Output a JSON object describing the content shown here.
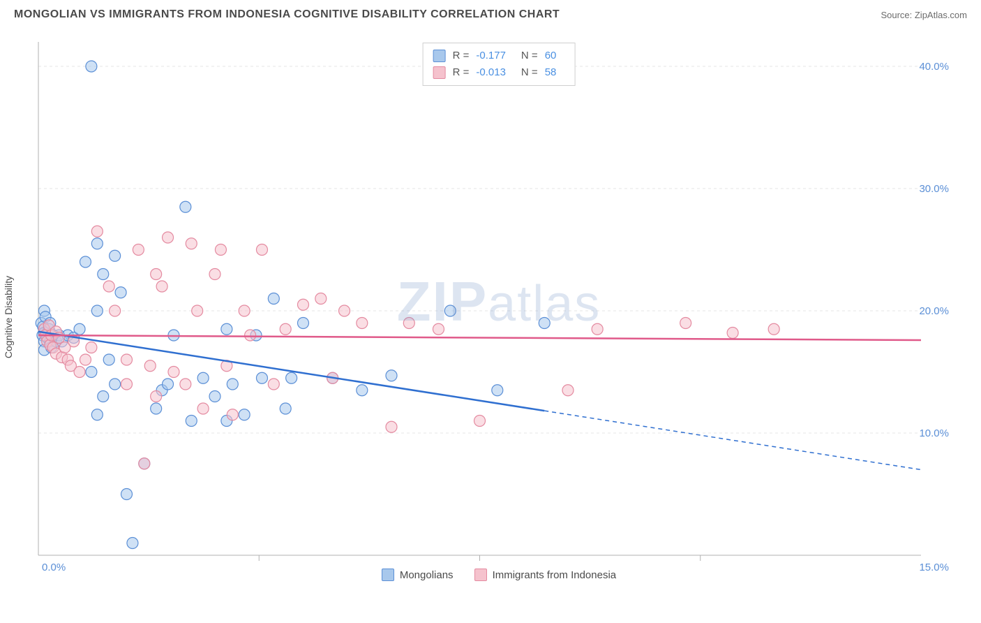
{
  "header": {
    "title": "MONGOLIAN VS IMMIGRANTS FROM INDONESIA COGNITIVE DISABILITY CORRELATION CHART",
    "source_prefix": "Source: ",
    "source_name": "ZipAtlas.com"
  },
  "watermark": {
    "bold": "ZIP",
    "rest": "atlas"
  },
  "y_axis": {
    "label": "Cognitive Disability"
  },
  "chart": {
    "type": "scatter",
    "xlim": [
      0,
      15
    ],
    "ylim": [
      0,
      42
    ],
    "x_ticks": [
      0,
      15
    ],
    "x_tick_labels": [
      "0.0%",
      "15.0%"
    ],
    "y_ticks": [
      10,
      20,
      30,
      40
    ],
    "y_tick_labels": [
      "10.0%",
      "20.0%",
      "30.0%",
      "40.0%"
    ],
    "x_tick_positions_minor": [
      3.75,
      7.5,
      11.25
    ],
    "grid_color": "#e5e5e5",
    "axis_color": "#b0b0b0",
    "tick_label_color": "#5b8fd6",
    "tick_label_fontsize": 15,
    "background_color": "#ffffff",
    "point_radius": 8,
    "point_opacity": 0.55,
    "series": [
      {
        "name": "Mongolians",
        "fill": "#a8c8ec",
        "stroke": "#5b8fd6",
        "R": "-0.177",
        "N": "60",
        "trend": {
          "y_at_x0": 18.3,
          "y_at_xmax": 7.0,
          "solid_until_x": 8.6,
          "color": "#2f6fd0",
          "width": 2.5
        },
        "points": [
          [
            0.05,
            19.0
          ],
          [
            0.07,
            18.0
          ],
          [
            0.08,
            18.7
          ],
          [
            0.1,
            20.0
          ],
          [
            0.1,
            18.2
          ],
          [
            0.12,
            19.5
          ],
          [
            0.12,
            18.0
          ],
          [
            0.1,
            17.5
          ],
          [
            0.1,
            16.8
          ],
          [
            0.15,
            17.8
          ],
          [
            0.18,
            18.5
          ],
          [
            0.2,
            19.0
          ],
          [
            0.2,
            17.5
          ],
          [
            0.22,
            17.0
          ],
          [
            0.25,
            18.0
          ],
          [
            0.3,
            17.5
          ],
          [
            0.35,
            18.0
          ],
          [
            0.4,
            17.5
          ],
          [
            0.5,
            18.0
          ],
          [
            0.6,
            17.8
          ],
          [
            0.7,
            18.5
          ],
          [
            0.9,
            40.0
          ],
          [
            0.8,
            24.0
          ],
          [
            1.0,
            25.5
          ],
          [
            1.1,
            23.0
          ],
          [
            1.3,
            24.5
          ],
          [
            1.4,
            21.5
          ],
          [
            1.0,
            20.0
          ],
          [
            0.9,
            15.0
          ],
          [
            1.0,
            11.5
          ],
          [
            1.1,
            13.0
          ],
          [
            1.2,
            16.0
          ],
          [
            1.3,
            14.0
          ],
          [
            1.5,
            5.0
          ],
          [
            1.6,
            1.0
          ],
          [
            1.8,
            7.5
          ],
          [
            2.0,
            12.0
          ],
          [
            2.1,
            13.5
          ],
          [
            2.2,
            14.0
          ],
          [
            2.3,
            18.0
          ],
          [
            2.5,
            28.5
          ],
          [
            2.6,
            11.0
          ],
          [
            2.8,
            14.5
          ],
          [
            3.0,
            13.0
          ],
          [
            3.2,
            18.5
          ],
          [
            3.2,
            11.0
          ],
          [
            3.3,
            14.0
          ],
          [
            3.5,
            11.5
          ],
          [
            3.7,
            18.0
          ],
          [
            3.8,
            14.5
          ],
          [
            4.0,
            21.0
          ],
          [
            4.2,
            12.0
          ],
          [
            4.3,
            14.5
          ],
          [
            4.5,
            19.0
          ],
          [
            5.0,
            14.5
          ],
          [
            5.5,
            13.5
          ],
          [
            6.0,
            14.7
          ],
          [
            7.0,
            20.0
          ],
          [
            7.8,
            13.5
          ],
          [
            8.6,
            19.0
          ]
        ]
      },
      {
        "name": "Immigrants from Indonesia",
        "fill": "#f5c2cd",
        "stroke": "#e48aa0",
        "R": "-0.013",
        "N": "58",
        "trend": {
          "y_at_x0": 18.0,
          "y_at_xmax": 17.6,
          "solid_until_x": 15,
          "color": "#e05a8a",
          "width": 2.5
        },
        "points": [
          [
            0.1,
            18.5
          ],
          [
            0.12,
            18.0
          ],
          [
            0.15,
            17.5
          ],
          [
            0.18,
            18.8
          ],
          [
            0.2,
            17.2
          ],
          [
            0.22,
            18.0
          ],
          [
            0.25,
            17.0
          ],
          [
            0.3,
            18.3
          ],
          [
            0.3,
            16.5
          ],
          [
            0.35,
            17.8
          ],
          [
            0.4,
            16.2
          ],
          [
            0.45,
            17.0
          ],
          [
            0.5,
            16.0
          ],
          [
            0.55,
            15.5
          ],
          [
            0.6,
            17.5
          ],
          [
            0.7,
            15.0
          ],
          [
            0.8,
            16.0
          ],
          [
            0.9,
            17.0
          ],
          [
            1.0,
            26.5
          ],
          [
            1.2,
            22.0
          ],
          [
            1.3,
            20.0
          ],
          [
            1.5,
            16.0
          ],
          [
            1.5,
            14.0
          ],
          [
            1.7,
            25.0
          ],
          [
            1.8,
            7.5
          ],
          [
            1.9,
            15.5
          ],
          [
            2.0,
            23.0
          ],
          [
            2.0,
            13.0
          ],
          [
            2.1,
            22.0
          ],
          [
            2.2,
            26.0
          ],
          [
            2.3,
            15.0
          ],
          [
            2.5,
            14.0
          ],
          [
            2.6,
            25.5
          ],
          [
            2.7,
            20.0
          ],
          [
            2.8,
            12.0
          ],
          [
            3.0,
            23.0
          ],
          [
            3.1,
            25.0
          ],
          [
            3.2,
            15.5
          ],
          [
            3.3,
            11.5
          ],
          [
            3.5,
            20.0
          ],
          [
            3.6,
            18.0
          ],
          [
            3.8,
            25.0
          ],
          [
            4.0,
            14.0
          ],
          [
            4.2,
            18.5
          ],
          [
            4.5,
            20.5
          ],
          [
            4.8,
            21.0
          ],
          [
            5.0,
            14.5
          ],
          [
            5.2,
            20.0
          ],
          [
            5.5,
            19.0
          ],
          [
            6.0,
            10.5
          ],
          [
            6.3,
            19.0
          ],
          [
            6.8,
            18.5
          ],
          [
            7.5,
            11.0
          ],
          [
            9.0,
            13.5
          ],
          [
            9.5,
            18.5
          ],
          [
            11.0,
            19.0
          ],
          [
            11.8,
            18.2
          ],
          [
            12.5,
            18.5
          ]
        ]
      }
    ]
  },
  "legend": {
    "items": [
      {
        "label": "Mongolians",
        "fill": "#a8c8ec",
        "stroke": "#5b8fd6"
      },
      {
        "label": "Immigrants from Indonesia",
        "fill": "#f5c2cd",
        "stroke": "#e48aa0"
      }
    ]
  }
}
